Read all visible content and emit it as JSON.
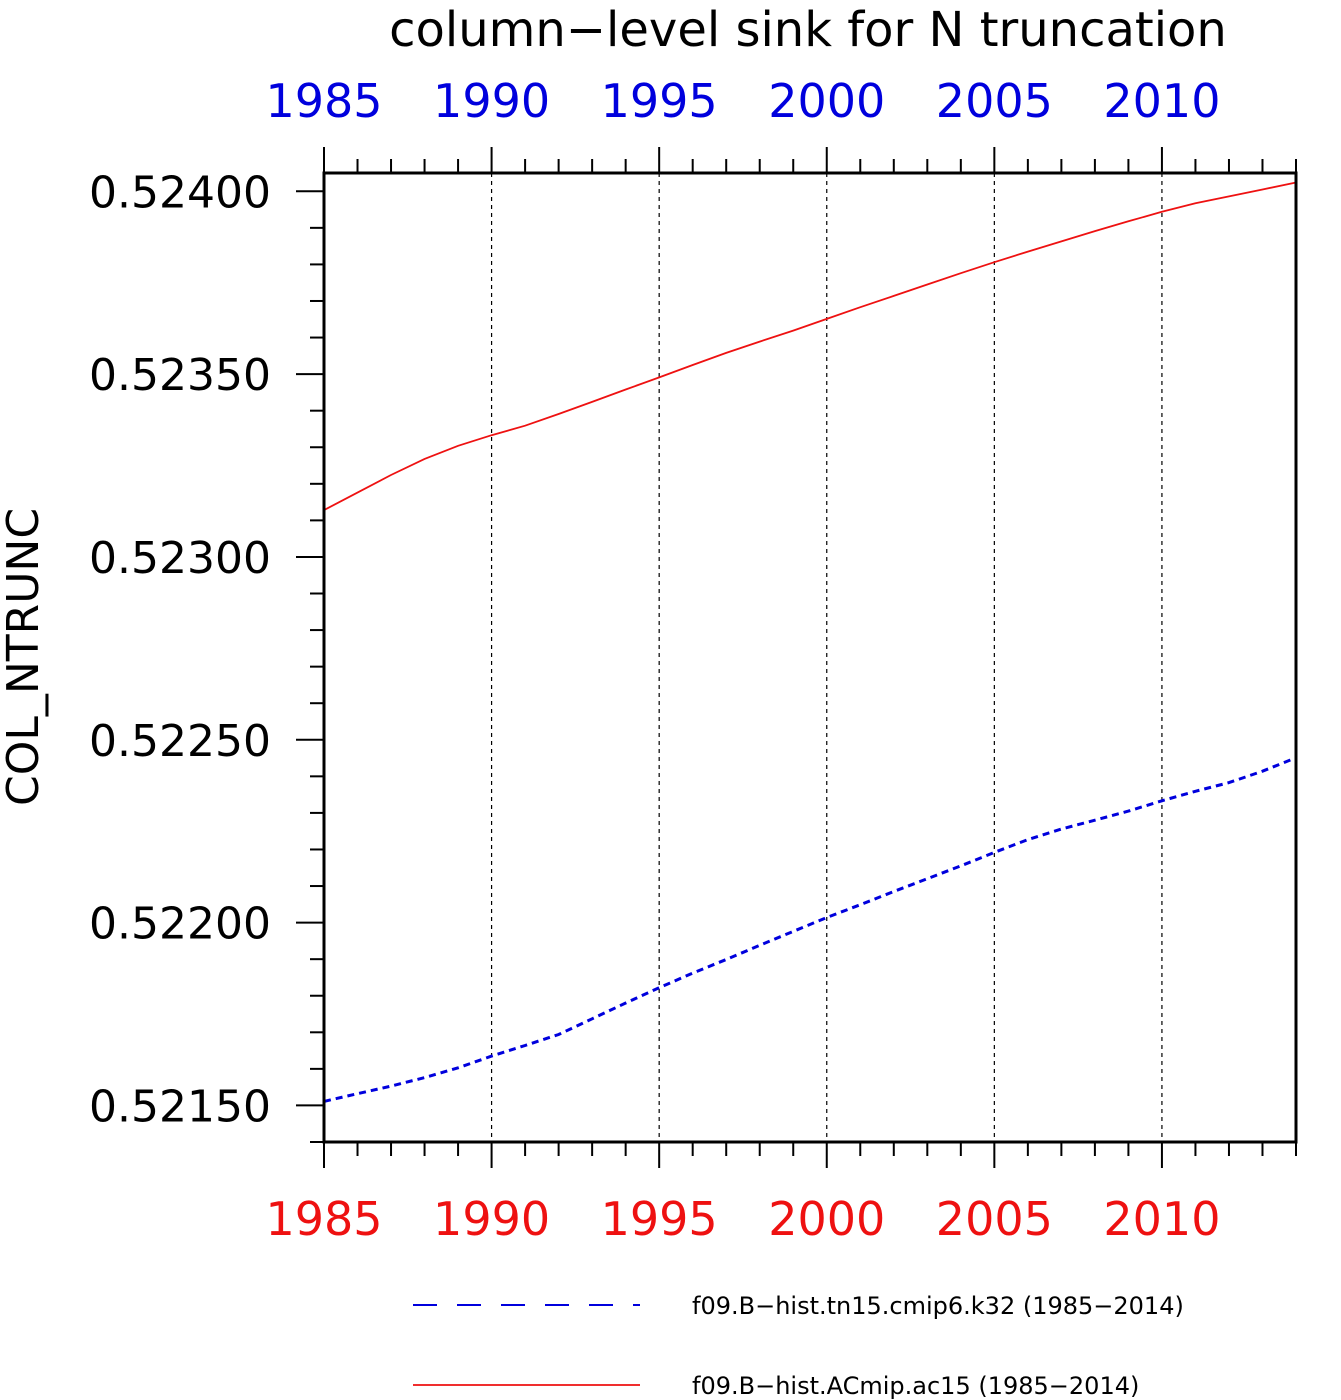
{
  "chart_data": {
    "type": "line",
    "title": "column−level sink for N truncation",
    "ylabel": "COL_NTRUNC",
    "xlabel": "",
    "xlim": [
      1985,
      2014
    ],
    "ylim": [
      0.5214,
      0.52405
    ],
    "x_ticks": [
      1985,
      1990,
      1995,
      2000,
      2005,
      2010
    ],
    "x_tick_labels": [
      "1985",
      "1990",
      "1995",
      "2000",
      "2005",
      "2010"
    ],
    "y_ticks": [
      0.5215,
      0.522,
      0.5225,
      0.523,
      0.5235,
      0.524
    ],
    "y_tick_labels": [
      "0.52150",
      "0.52200",
      "0.52250",
      "0.52300",
      "0.52350",
      "0.52400"
    ],
    "grid": "vertical-dotted",
    "legend_position": "bottom",
    "series": [
      {
        "name": "f09.B−hist.tn15.cmip6.k32 (1985−2014)",
        "color": "#0000dd",
        "style": "dashed",
        "x": [
          1985,
          1986,
          1987,
          1988,
          1989,
          1990,
          1991,
          1992,
          1993,
          1994,
          1995,
          1996,
          1997,
          1998,
          1999,
          2000,
          2001,
          2002,
          2003,
          2004,
          2005,
          2006,
          2007,
          2008,
          2009,
          2010,
          2011,
          2012,
          2013,
          2014
        ],
        "values": [
          0.521511,
          0.521532,
          0.521553,
          0.521576,
          0.521603,
          0.521635,
          0.521664,
          0.521694,
          0.521737,
          0.52178,
          0.521822,
          0.521862,
          0.521899,
          0.521938,
          0.521976,
          0.522014,
          0.522049,
          0.522085,
          0.52212,
          0.522155,
          0.522192,
          0.522227,
          0.522256,
          0.52228,
          0.522305,
          0.522333,
          0.522359,
          0.522383,
          0.522414,
          0.522451
        ]
      },
      {
        "name": "f09.B−hist.ACmip.ac15 (1985−2014)",
        "color": "#ee1111",
        "style": "solid",
        "x": [
          1985,
          1986,
          1987,
          1988,
          1989,
          1990,
          1991,
          1992,
          1993,
          1994,
          1995,
          1996,
          1997,
          1998,
          1999,
          2000,
          2001,
          2002,
          2003,
          2004,
          2005,
          2006,
          2007,
          2008,
          2009,
          2010,
          2011,
          2012,
          2013,
          2014
        ],
        "values": [
          0.523128,
          0.523176,
          0.523224,
          0.523268,
          0.523304,
          0.523333,
          0.523359,
          0.523391,
          0.523424,
          0.523458,
          0.523491,
          0.523525,
          0.523558,
          0.523589,
          0.523619,
          0.523651,
          0.523683,
          0.523714,
          0.523745,
          0.523776,
          0.523806,
          0.523835,
          0.523863,
          0.523891,
          0.523918,
          0.523944,
          0.523967,
          0.523986,
          0.524005,
          0.524024
        ]
      }
    ]
  }
}
